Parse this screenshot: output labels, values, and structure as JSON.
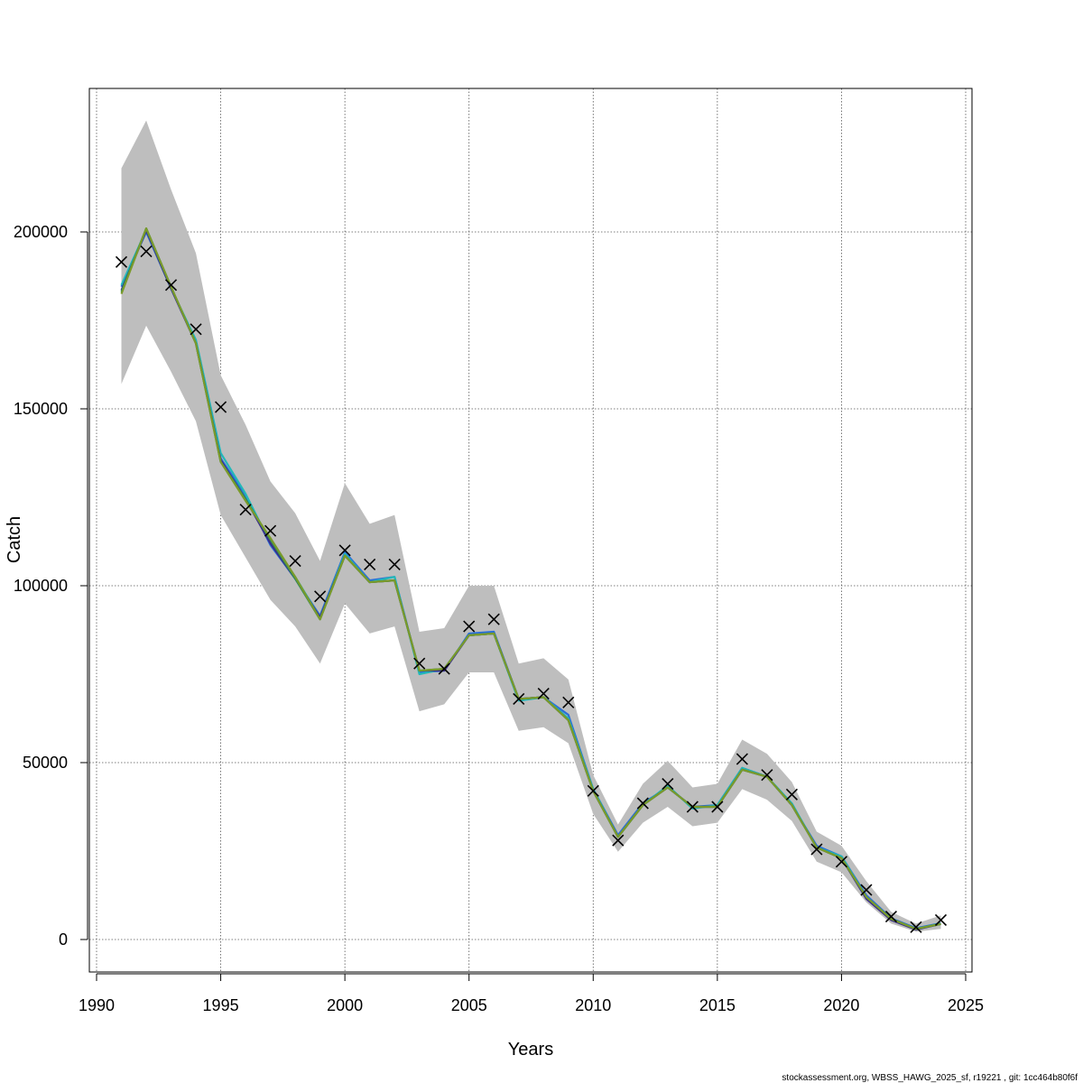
{
  "chart_data": {
    "type": "line",
    "title": "",
    "xlabel": "Years",
    "ylabel": "Catch",
    "xlim": [
      1990,
      2025
    ],
    "ylim": [
      0,
      200000
    ],
    "x_ticks": [
      1990,
      1995,
      2000,
      2005,
      2010,
      2015,
      2020,
      2025
    ],
    "y_ticks": [
      0,
      50000,
      100000,
      150000,
      200000
    ],
    "grid": true,
    "years": [
      1991,
      1992,
      1993,
      1994,
      1995,
      1996,
      1997,
      1998,
      1999,
      2000,
      2001,
      2002,
      2003,
      2004,
      2005,
      2006,
      2007,
      2008,
      2009,
      2010,
      2011,
      2012,
      2013,
      2014,
      2015,
      2016,
      2017,
      2018,
      2019,
      2020,
      2021,
      2022,
      2023,
      2024
    ],
    "observed": [
      191500,
      194500,
      185000,
      172500,
      150500,
      121500,
      115500,
      107000,
      97000,
      110000,
      106000,
      106000,
      78000,
      76500,
      88500,
      90500,
      68000,
      69500,
      67000,
      42000,
      28000,
      38500,
      44000,
      37500,
      37500,
      51000,
      46500,
      41000,
      25500,
      22000,
      14000,
      6500,
      3500,
      5500
    ],
    "confidence_band": {
      "lower": [
        157000,
        173500,
        160500,
        146500,
        120000,
        108000,
        96000,
        88500,
        78000,
        95000,
        86500,
        88500,
        64500,
        66500,
        75500,
        75500,
        59000,
        60000,
        55500,
        35500,
        24800,
        33000,
        37500,
        32000,
        33000,
        42500,
        39500,
        33500,
        22000,
        19000,
        10500,
        4500,
        2200,
        3000
      ],
      "upper": [
        218000,
        231500,
        212000,
        194000,
        159500,
        145500,
        129500,
        120500,
        107000,
        129000,
        117500,
        120000,
        87000,
        88000,
        100000,
        100000,
        78000,
        79500,
        73500,
        46500,
        32500,
        44000,
        50500,
        43000,
        44000,
        56500,
        52500,
        44500,
        30500,
        26500,
        16500,
        7800,
        4500,
        6800
      ]
    },
    "series": [
      {
        "color": "#2b6fd8",
        "values": [
          184500,
          200000,
          184000,
          169000,
          136000,
          125500,
          111500,
          102000,
          91500,
          109500,
          101500,
          102500,
          75500,
          76000,
          86500,
          87000,
          68000,
          68500,
          63500,
          42500,
          29500,
          38500,
          43000,
          37500,
          38000,
          48500,
          46000,
          38000,
          26500,
          23500,
          12500,
          6000,
          3200,
          4600
        ]
      },
      {
        "color": "#22b8b8",
        "values": [
          185000,
          200500,
          184000,
          169500,
          137500,
          126000,
          112000,
          102500,
          91000,
          109000,
          101000,
          102500,
          75000,
          76500,
          86000,
          86500,
          67500,
          68500,
          62500,
          42500,
          29000,
          38000,
          43500,
          37000,
          38000,
          48500,
          46000,
          38500,
          26000,
          23500,
          12000,
          5800,
          3000,
          4500
        ]
      },
      {
        "color": "#3b2a8a",
        "values": [
          183500,
          200500,
          184000,
          168500,
          135500,
          124500,
          112000,
          102000,
          91000,
          108500,
          101000,
          101500,
          76000,
          76000,
          86000,
          86500,
          68000,
          68500,
          62000,
          42000,
          29000,
          38000,
          43000,
          37500,
          37500,
          48000,
          46000,
          38000,
          26000,
          23000,
          11500,
          5500,
          2800,
          4400
        ]
      },
      {
        "color": "#2e8b57",
        "values": [
          183000,
          201000,
          184500,
          168500,
          135000,
          124500,
          113000,
          102000,
          90500,
          108500,
          101000,
          101500,
          76000,
          76500,
          86000,
          86500,
          68000,
          68500,
          62000,
          42000,
          29000,
          38000,
          43000,
          37500,
          37500,
          48000,
          46000,
          38000,
          26000,
          23000,
          12000,
          5800,
          3000,
          4400
        ]
      },
      {
        "color": "#7a9a2a",
        "values": [
          182500,
          201000,
          184500,
          168500,
          135000,
          124000,
          113500,
          102500,
          90500,
          108500,
          101000,
          101500,
          76000,
          76500,
          86000,
          86500,
          68000,
          68500,
          62000,
          42000,
          29000,
          38000,
          43000,
          37500,
          37500,
          48000,
          46000,
          38000,
          26000,
          23000,
          12000,
          5800,
          3000,
          4400
        ]
      }
    ],
    "band_color": "#bebebe",
    "marker": "x"
  },
  "footer": {
    "note": "stockassessment.org, WBSS_HAWG_2025_sf, r19221 , git: 1cc464b80f6f"
  }
}
